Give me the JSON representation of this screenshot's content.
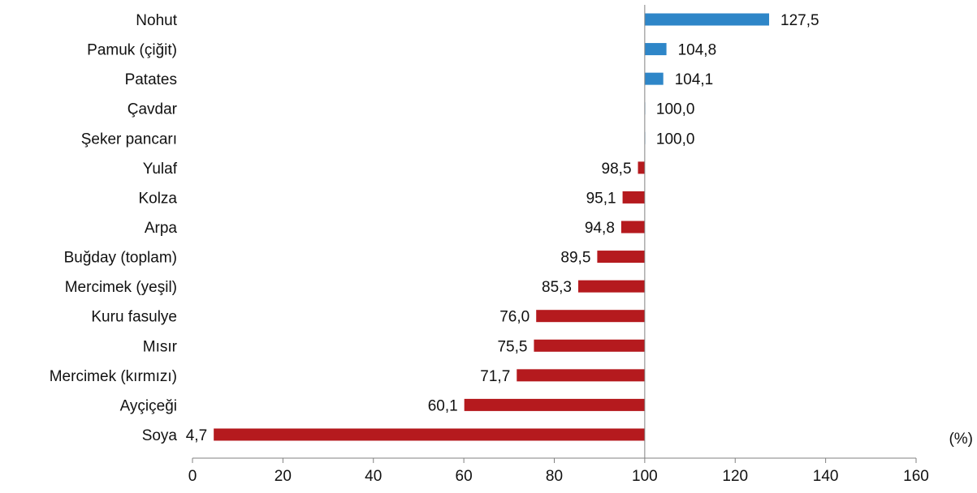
{
  "chart_data": {
    "type": "bar",
    "orientation": "horizontal",
    "title": "",
    "xlabel": "",
    "ylabel": "",
    "unit": "(%)",
    "baseline": 100,
    "xlim": [
      0,
      160
    ],
    "xticks": [
      0,
      20,
      40,
      60,
      80,
      100,
      120,
      140,
      160
    ],
    "grid": false,
    "legend": "none",
    "categories": [
      "Nohut",
      "Pamuk (çiğit)",
      "Patates",
      "Çavdar",
      "Şeker pancarı",
      "Yulaf",
      "Kolza",
      "Arpa",
      "Buğday (toplam)",
      "Mercimek (yeşil)",
      "Kuru fasulye",
      "Mısır",
      "Mercimek (kırmızı)",
      "Ayçiçeği",
      "Soya"
    ],
    "values": [
      127.5,
      104.8,
      104.1,
      100.0,
      100.0,
      98.5,
      95.1,
      94.8,
      89.5,
      85.3,
      76.0,
      75.5,
      71.7,
      60.1,
      4.7
    ],
    "value_labels": [
      "127,5",
      "104,8",
      "104,1",
      "100,0",
      "100,0",
      "98,5",
      "95,1",
      "94,8",
      "89,5",
      "85,3",
      "76,0",
      "75,5",
      "71,7",
      "60,1",
      "4,7"
    ],
    "colors": {
      "above": "#2e86c8",
      "below": "#b51a1e",
      "axis": "#808080"
    }
  }
}
